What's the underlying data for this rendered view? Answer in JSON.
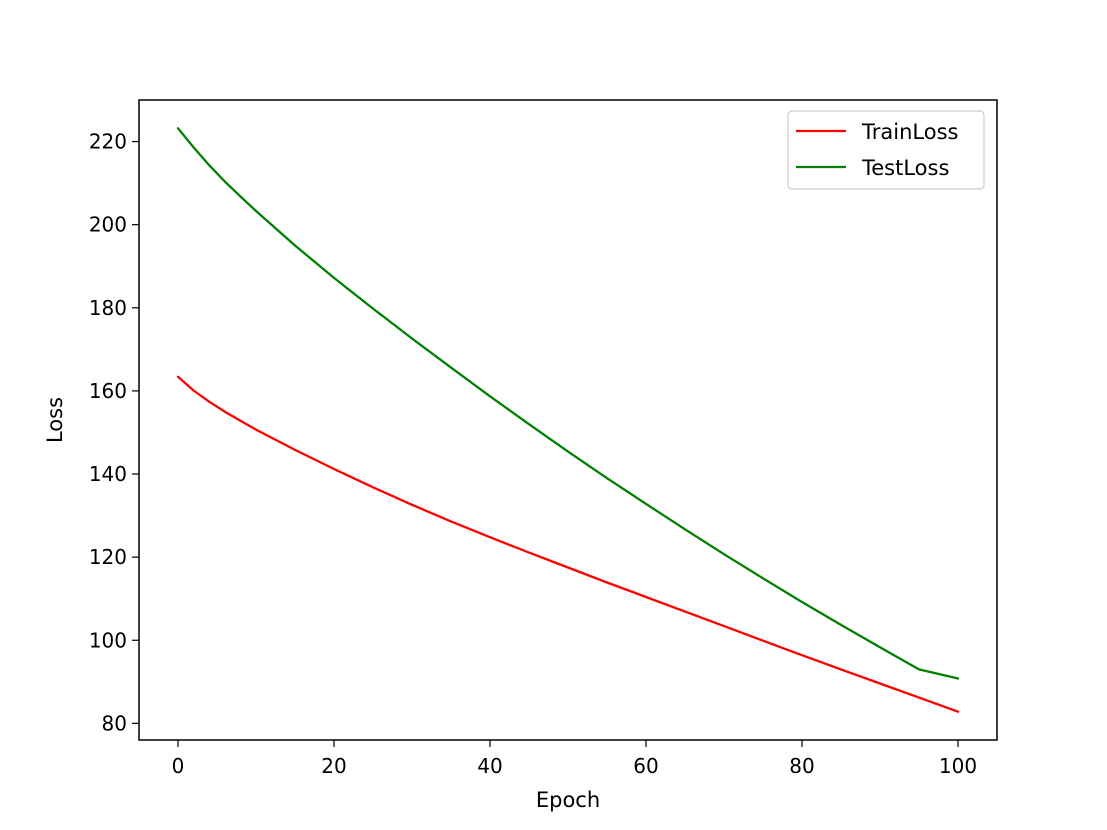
{
  "chart_data": {
    "type": "line",
    "title": "",
    "xlabel": "Epoch",
    "ylabel": "Loss",
    "xlim": [
      -5,
      105
    ],
    "ylim": [
      76,
      230
    ],
    "xticks": [
      0,
      20,
      40,
      60,
      80,
      100
    ],
    "xtick_labels": [
      "0",
      "20",
      "40",
      "60",
      "80",
      "100"
    ],
    "yticks": [
      80,
      100,
      120,
      140,
      160,
      180,
      200,
      220
    ],
    "ytick_labels": [
      "80",
      "100",
      "120",
      "140",
      "160",
      "180",
      "200",
      "220"
    ],
    "grid": false,
    "legend_position": "top-right",
    "x": [
      0,
      2,
      4,
      6,
      8,
      10,
      15,
      20,
      25,
      30,
      35,
      40,
      45,
      50,
      55,
      60,
      65,
      70,
      75,
      80,
      85,
      90,
      95,
      100
    ],
    "series": [
      {
        "name": "TrainLoss",
        "color": "#ff0000",
        "values": [
          163.4,
          160.1,
          157.4,
          155.0,
          152.8,
          150.7,
          145.8,
          141.2,
          136.8,
          132.6,
          128.6,
          124.8,
          121.1,
          117.5,
          113.9,
          110.4,
          106.9,
          103.4,
          99.9,
          96.4,
          93.0,
          89.6,
          86.2,
          82.8
        ]
      },
      {
        "name": "TestLoss",
        "color": "#008000",
        "values": [
          223.2,
          218.6,
          214.3,
          210.4,
          206.8,
          203.3,
          195.0,
          187.2,
          179.8,
          172.6,
          165.6,
          158.7,
          152.0,
          145.4,
          139.0,
          132.8,
          126.7,
          120.7,
          114.9,
          109.2,
          103.7,
          98.3,
          93.0,
          90.8
        ]
      }
    ]
  }
}
